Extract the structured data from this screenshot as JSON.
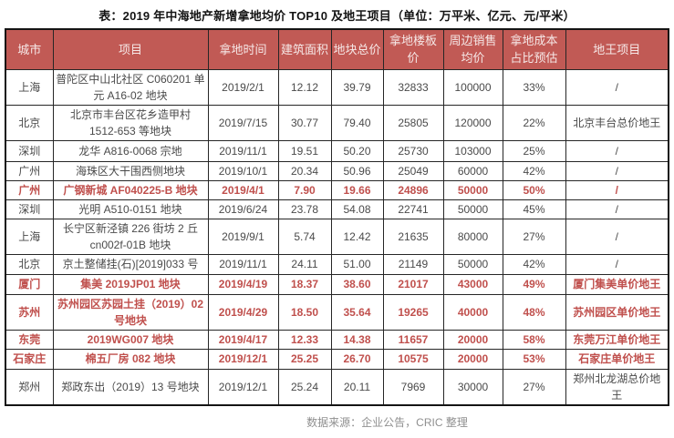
{
  "title": "表：2019 年中海地产新增拿地均价 TOP10 及地王项目（单位：万平米、亿元、元/平米）",
  "footer": "数据来源：企业公告，CRIC 整理",
  "colors": {
    "header_bg": "#C15A55",
    "header_text": "#F6E8E7",
    "highlight_text": "#C0504D",
    "body_text": "#4a4a4a",
    "border": "#262626"
  },
  "table": {
    "columns": [
      "城市",
      "项目",
      "拿地时间",
      "建筑面积",
      "地块总价",
      "拿地楼板价",
      "周边销售均价",
      "拿地成本占比预估",
      "地王项目"
    ],
    "rows": [
      {
        "city": "上海",
        "project": "普陀区中山北社区 C060201 单元 A16-02 地块",
        "date": "2019/2/1",
        "area": "12.12",
        "total_price": "39.79",
        "floor_price": "32833",
        "nearby_price": "100000",
        "cost_ratio": "33%",
        "land_king": "/",
        "highlight": false
      },
      {
        "city": "北京",
        "project": "北京市丰台区花乡造甲村 1512-653 等地块",
        "date": "2019/7/15",
        "area": "30.77",
        "total_price": "79.40",
        "floor_price": "25805",
        "nearby_price": "120000",
        "cost_ratio": "22%",
        "land_king": "北京丰台总价地王",
        "highlight": false
      },
      {
        "city": "深圳",
        "project": "龙华 A816-0068 宗地",
        "date": "2019/11/1",
        "area": "19.51",
        "total_price": "50.20",
        "floor_price": "25730",
        "nearby_price": "103000",
        "cost_ratio": "25%",
        "land_king": "/",
        "highlight": false
      },
      {
        "city": "广州",
        "project": "海珠区大干围西侧地块",
        "date": "2019/10/1",
        "area": "20.34",
        "total_price": "50.96",
        "floor_price": "25049",
        "nearby_price": "60000",
        "cost_ratio": "42%",
        "land_king": "/",
        "highlight": false
      },
      {
        "city": "广州",
        "project": "广钢新城 AF040225-B 地块",
        "date": "2019/4/1",
        "area": "7.90",
        "total_price": "19.66",
        "floor_price": "24896",
        "nearby_price": "50000",
        "cost_ratio": "50%",
        "land_king": "/",
        "highlight": true
      },
      {
        "city": "深圳",
        "project": "光明 A510-0151 地块",
        "date": "2019/6/24",
        "area": "23.78",
        "total_price": "54.08",
        "floor_price": "22741",
        "nearby_price": "50000",
        "cost_ratio": "45%",
        "land_king": "/",
        "highlight": false
      },
      {
        "city": "上海",
        "project": "长宁区新泾镇 226 街坊 2 丘 cn002f-01B 地块",
        "date": "2019/9/1",
        "area": "5.74",
        "total_price": "12.42",
        "floor_price": "21635",
        "nearby_price": "80000",
        "cost_ratio": "27%",
        "land_king": "/",
        "highlight": false
      },
      {
        "city": "北京",
        "project": "京土整储挂(石)[2019]033 号",
        "date": "2019/11/1",
        "area": "24.11",
        "total_price": "51.00",
        "floor_price": "21149",
        "nearby_price": "50000",
        "cost_ratio": "42%",
        "land_king": "/",
        "highlight": false
      },
      {
        "city": "厦门",
        "project": "集美 2019JP01 地块",
        "date": "2019/4/19",
        "area": "18.37",
        "total_price": "38.60",
        "floor_price": "21017",
        "nearby_price": "43000",
        "cost_ratio": "49%",
        "land_king": "厦门集美单价地王",
        "highlight": true
      },
      {
        "city": "苏州",
        "project": "苏州园区苏园土挂（2019）02 号地块",
        "date": "2019/4/29",
        "area": "18.50",
        "total_price": "35.64",
        "floor_price": "19265",
        "nearby_price": "40000",
        "cost_ratio": "48%",
        "land_king": "苏州园区单价地王",
        "highlight": true
      },
      {
        "city": "东莞",
        "project": "2019WG007 地块",
        "date": "2019/4/17",
        "area": "12.33",
        "total_price": "14.38",
        "floor_price": "11657",
        "nearby_price": "20000",
        "cost_ratio": "58%",
        "land_king": "东莞万江单价地王",
        "highlight": true
      },
      {
        "city": "石家庄",
        "project": "棉五厂房 082 地块",
        "date": "2019/12/1",
        "area": "25.25",
        "total_price": "26.70",
        "floor_price": "10575",
        "nearby_price": "20000",
        "cost_ratio": "53%",
        "land_king": "石家庄单价地王",
        "highlight": true
      },
      {
        "city": "郑州",
        "project": "郑政东出（2019）13 号地块",
        "date": "2019/12/1",
        "area": "25.24",
        "total_price": "20.11",
        "floor_price": "7969",
        "nearby_price": "30000",
        "cost_ratio": "27%",
        "land_king": "郑州北龙湖总价地王",
        "highlight": false
      }
    ]
  }
}
